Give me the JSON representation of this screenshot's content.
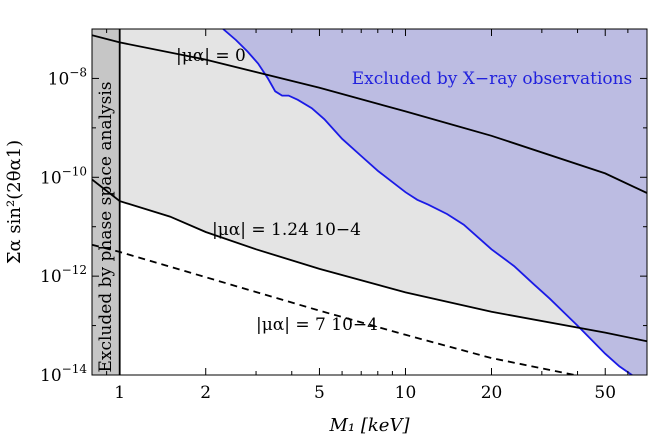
{
  "chart_data": {
    "type": "line",
    "title": "",
    "xlabel": "M₁ [keV]",
    "ylabel": "Σα sin²(2θα1)",
    "x_scale": "log",
    "y_scale": "log",
    "xlim": [
      0.8,
      70
    ],
    "ylim": [
      1e-14,
      1e-07
    ],
    "grid": false,
    "x_ticks": [
      {
        "value": 1,
        "label": "1"
      },
      {
        "value": 2,
        "label": "2"
      },
      {
        "value": 5,
        "label": "5"
      },
      {
        "value": 10,
        "label": "10"
      },
      {
        "value": 20,
        "label": "20"
      },
      {
        "value": 50,
        "label": "50"
      }
    ],
    "y_ticks": [
      {
        "value": 1e-08,
        "base": "10",
        "exp": "−8"
      },
      {
        "value": 1e-10,
        "base": "10",
        "exp": "−10"
      },
      {
        "value": 1e-12,
        "base": "10",
        "exp": "−12"
      },
      {
        "value": 1e-14,
        "base": "10",
        "exp": "−14"
      }
    ],
    "regions": [
      {
        "label": "Excluded by X−ray observations",
        "color": "#bcbce2",
        "boundary_color": "#1a1ae6",
        "boundary": {
          "x": [
            2.3,
            2.55,
            2.8,
            3.05,
            3.3,
            3.5,
            3.7,
            3.9,
            4.2,
            4.7,
            5.2,
            6,
            7,
            8,
            9,
            10,
            11,
            12,
            14,
            16,
            18,
            20,
            24,
            28,
            32,
            36,
            40,
            45,
            50,
            56,
            62,
            70
          ],
          "y": [
            1e-07,
            6e-08,
            3.5e-08,
            2e-08,
            1e-08,
            5.5e-09,
            4.5e-09,
            4.5e-09,
            3.7e-09,
            2.5e-09,
            1.5e-09,
            6e-10,
            2.7e-10,
            1.35e-10,
            8e-11,
            5e-11,
            3.5e-11,
            2.8e-11,
            1.8e-11,
            1.1e-11,
            6e-12,
            3.5e-12,
            1.6e-12,
            7e-13,
            3.5e-13,
            1.8e-13,
            1e-13,
            5e-14,
            2.7e-14,
            1.5e-14,
            1e-14,
            6e-15
          ]
        }
      },
      {
        "label": "Excluded by phase space analysis",
        "color": "#c6c6c6",
        "x_range": [
          0.8,
          1
        ]
      }
    ],
    "series": [
      {
        "name": "|μα| = 0",
        "style": "solid",
        "x": [
          0.8,
          1,
          2,
          5,
          10,
          20,
          50,
          70
        ],
        "y": [
          7.5e-08,
          5.35e-08,
          2.4e-08,
          6.5e-09,
          2.15e-09,
          6.9e-10,
          1.2e-10,
          4.8e-11
        ]
      },
      {
        "name": "|μα| = 1.24 10−4",
        "style": "solid",
        "x": [
          0.8,
          1,
          1.5,
          2,
          3,
          5,
          10,
          20,
          50,
          70
        ],
        "y": [
          9e-11,
          3.3e-11,
          1.6e-11,
          7.8e-12,
          3.5e-12,
          1.4e-12,
          4.7e-13,
          1.9e-13,
          7.2e-14,
          4.8e-14
        ]
      },
      {
        "name": "|μα| = 7 10−4",
        "style": "dashed",
        "x": [
          0.8,
          1,
          2,
          5,
          10,
          20,
          50,
          70
        ],
        "y": [
          4.3e-12,
          3.1e-12,
          9.5e-13,
          2e-13,
          6.5e-14,
          2.2e-14,
          7.5e-15,
          5e-15
        ]
      }
    ],
    "annotations": [
      {
        "id": "mu0",
        "text": "|μα| = 0"
      },
      {
        "id": "mu124",
        "text": "|μα| = 1.24 10−4"
      },
      {
        "id": "mu7",
        "text": "|μα| = 7 10−4"
      }
    ]
  }
}
